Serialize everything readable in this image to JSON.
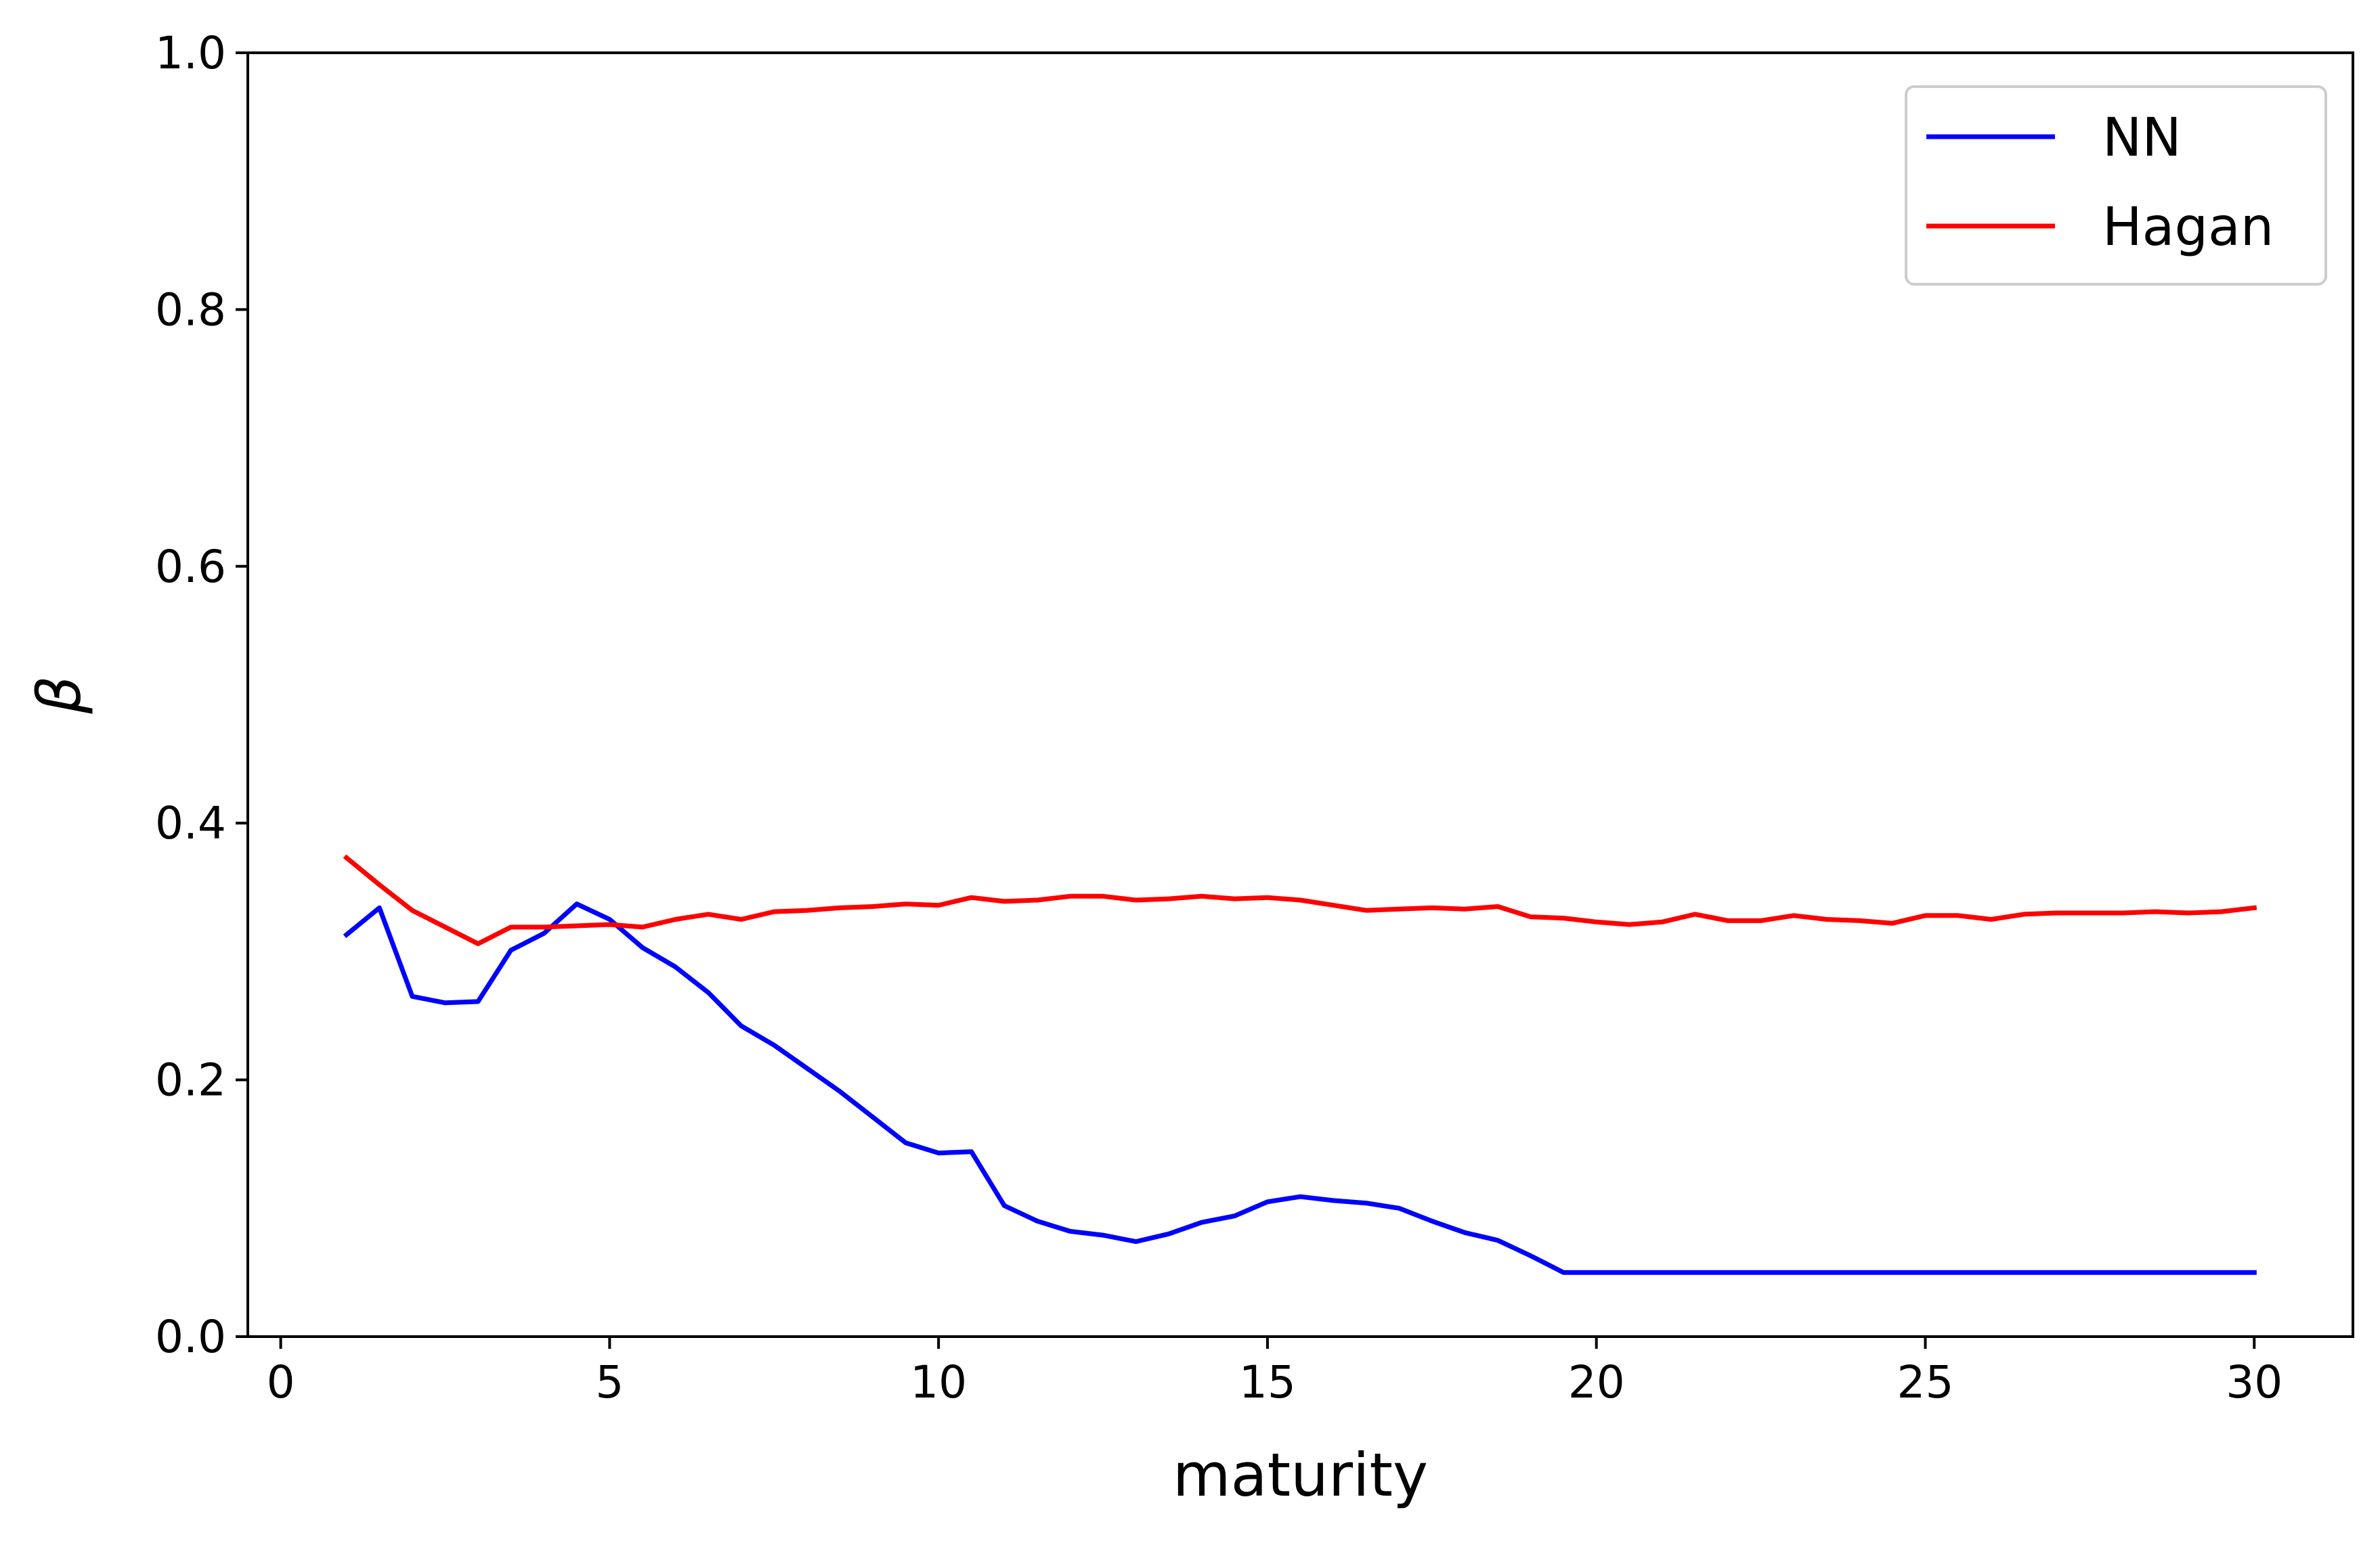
{
  "chart_data": {
    "type": "line",
    "title": "",
    "xlabel": "maturity",
    "ylabel": "β",
    "xlim": [
      -0.5,
      31.5
    ],
    "ylim": [
      0.0,
      1.0
    ],
    "xticks": [
      0,
      5,
      10,
      15,
      20,
      25,
      30
    ],
    "yticks": [
      0.0,
      0.2,
      0.4,
      0.6,
      0.8,
      1.0
    ],
    "xtick_labels": [
      "0",
      "5",
      "10",
      "15",
      "20",
      "25",
      "30"
    ],
    "ytick_labels": [
      "0.0",
      "0.2",
      "0.4",
      "0.6",
      "0.8",
      "1.0"
    ],
    "grid": false,
    "legend_position": "top-right",
    "x": [
      1,
      1.5,
      2,
      2.5,
      3,
      3.5,
      4,
      4.5,
      5,
      5.5,
      6,
      6.5,
      7,
      7.5,
      8,
      8.5,
      9,
      9.5,
      10,
      10.5,
      11,
      11.5,
      12,
      12.5,
      13,
      13.5,
      14,
      14.5,
      15,
      15.5,
      16,
      16.5,
      17,
      17.5,
      18,
      18.5,
      19,
      19.5,
      20,
      20.5,
      21,
      21.5,
      22,
      22.5,
      23,
      23.5,
      24,
      24.5,
      25,
      25.5,
      26,
      26.5,
      27,
      27.5,
      28,
      28.5,
      29,
      29.5,
      30
    ],
    "series": [
      {
        "name": "NN",
        "color": "#0000ff",
        "values": [
          0.313,
          0.334,
          0.265,
          0.26,
          0.261,
          0.301,
          0.314,
          0.337,
          0.325,
          0.303,
          0.288,
          0.268,
          0.242,
          0.227,
          0.209,
          0.191,
          0.171,
          0.151,
          0.143,
          0.144,
          0.102,
          0.09,
          0.082,
          0.079,
          0.074,
          0.08,
          0.089,
          0.094,
          0.105,
          0.109,
          0.106,
          0.104,
          0.1,
          0.09,
          0.081,
          0.075,
          0.063,
          0.05,
          0.05,
          0.05,
          0.05,
          0.05,
          0.05,
          0.05,
          0.05,
          0.05,
          0.05,
          0.05,
          0.05,
          0.05,
          0.05,
          0.05,
          0.05,
          0.05,
          0.05,
          0.05,
          0.05,
          0.05,
          0.05
        ]
      },
      {
        "name": "Hagan",
        "color": "#ff0000",
        "values": [
          0.373,
          0.352,
          0.332,
          0.319,
          0.306,
          0.319,
          0.319,
          0.32,
          0.321,
          0.319,
          0.325,
          0.329,
          0.325,
          0.331,
          0.332,
          0.334,
          0.335,
          0.337,
          0.336,
          0.342,
          0.339,
          0.34,
          0.343,
          0.343,
          0.34,
          0.341,
          0.343,
          0.341,
          0.342,
          0.34,
          0.336,
          0.332,
          0.333,
          0.334,
          0.333,
          0.335,
          0.327,
          0.326,
          0.323,
          0.321,
          0.323,
          0.329,
          0.324,
          0.324,
          0.328,
          0.325,
          0.324,
          0.322,
          0.328,
          0.328,
          0.325,
          0.329,
          0.33,
          0.33,
          0.33,
          0.331,
          0.33,
          0.331,
          0.334
        ]
      }
    ]
  }
}
